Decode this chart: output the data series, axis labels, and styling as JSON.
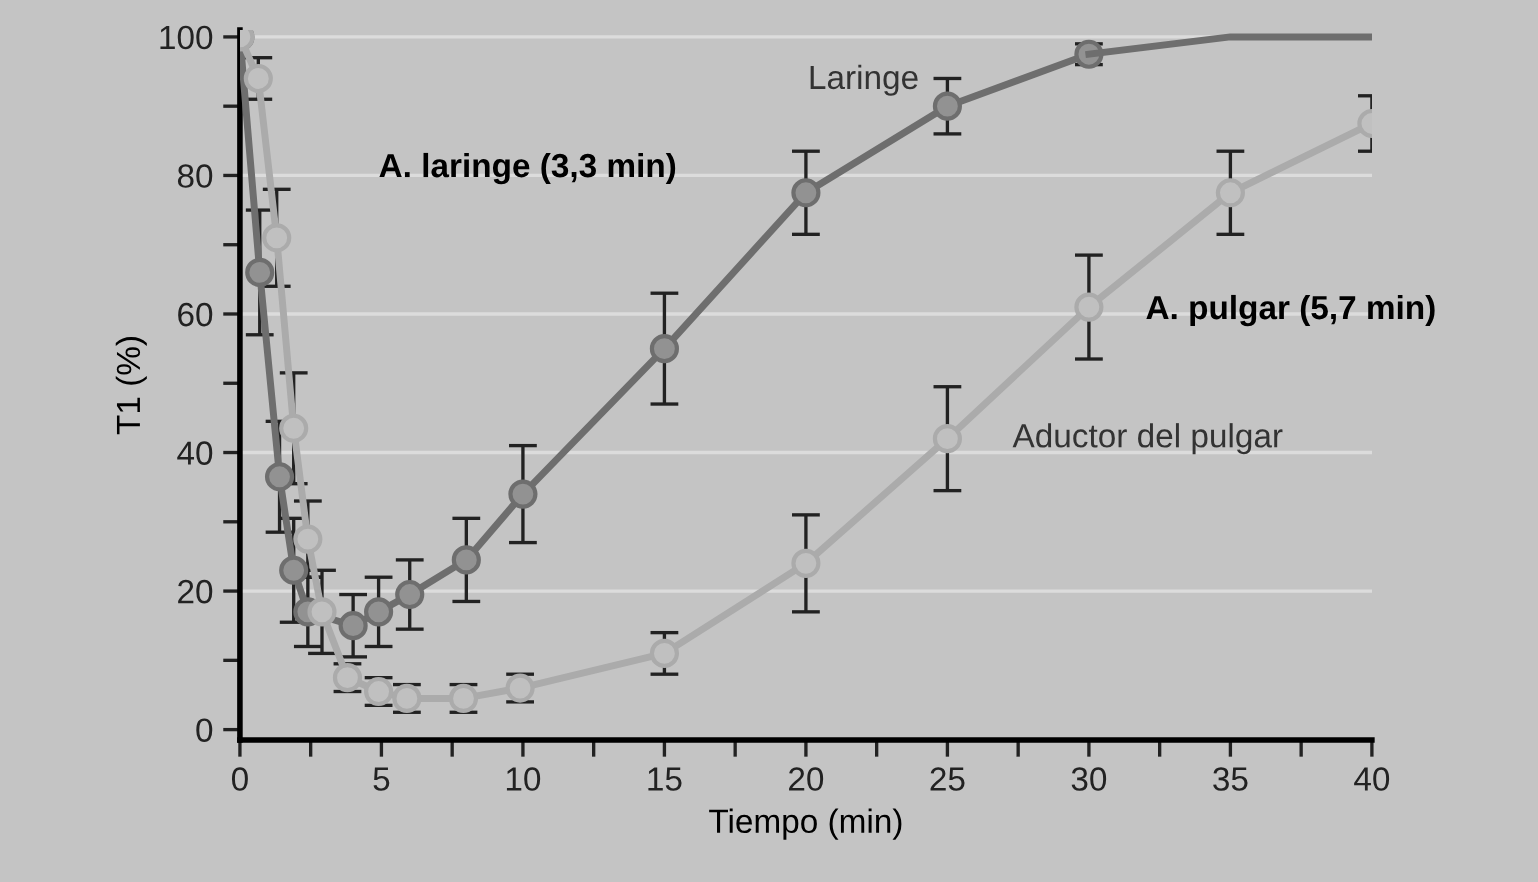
{
  "chart_data": {
    "type": "line",
    "xlabel": "Tiempo (min)",
    "ylabel": "T1 (%)",
    "xlim": [
      0,
      40
    ],
    "xticks": [
      0,
      {
        "value": 2.5,
        "label": null
      },
      5,
      {
        "value": 7.5,
        "label": null
      },
      10,
      {
        "value": 12.5,
        "label": null
      },
      15,
      {
        "value": 17.5,
        "label": null
      },
      20,
      {
        "value": 22.5,
        "label": null
      },
      25,
      {
        "value": 27.5,
        "label": null
      },
      30,
      {
        "value": 32.5,
        "label": null
      },
      35,
      {
        "value": 37.5,
        "label": null
      },
      40
    ],
    "ylim": [
      -1.5,
      101
    ],
    "yticks": [
      0,
      {
        "value": 10,
        "label": null
      },
      20,
      {
        "value": 30,
        "label": null
      },
      40,
      {
        "value": 50,
        "label": null
      },
      60,
      {
        "value": 70,
        "label": null
      },
      80,
      {
        "value": 90,
        "label": null
      },
      100
    ],
    "grid": "y",
    "marker": "circle",
    "line_style": "solid",
    "legend": false,
    "series": [
      {
        "name": "Laringe",
        "color": "#6e6e6e",
        "x": [
          0,
          0.7,
          1.4,
          1.9,
          2.4,
          4,
          4.9,
          6,
          8,
          10,
          15,
          20,
          25,
          30
        ],
        "values": [
          100,
          66,
          36.5,
          23,
          17,
          15,
          17,
          19.5,
          24.5,
          34,
          55,
          77.5,
          90,
          97.5
        ],
        "errors": [
          null,
          9,
          8,
          7.5,
          5,
          4.5,
          5,
          5,
          6,
          7,
          8,
          6,
          4,
          1.5
        ]
      },
      {
        "type": "line",
        "marker": "none",
        "color": "#6e6e6e",
        "x": [
          30,
          35,
          40
        ],
        "values": [
          97.5,
          100,
          100
        ]
      },
      {
        "name": "Aductor del pulgar",
        "color": "#ababab",
        "x": [
          0,
          0.65,
          1.3,
          1.9,
          2.4,
          2.9,
          3.8,
          4.9,
          5.9,
          7.9,
          9.9,
          15,
          20,
          25,
          30,
          35,
          40
        ],
        "values": [
          100,
          94,
          71,
          43.5,
          27.5,
          17,
          7.5,
          5.5,
          4.5,
          4.5,
          6,
          11,
          24,
          42,
          61,
          77.5,
          87.5
        ],
        "errors": [
          null,
          3,
          7,
          8,
          5.5,
          6,
          2,
          2,
          2,
          2,
          2,
          3,
          7,
          7.5,
          7.5,
          6,
          4
        ]
      }
    ],
    "annotations": [
      "A. laringe (3,3 min)",
      "A. pulgar (5,7 min)"
    ]
  }
}
